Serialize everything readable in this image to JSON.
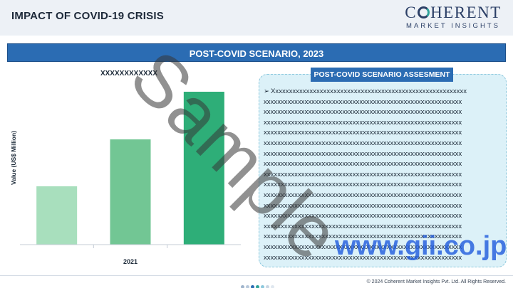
{
  "header": {
    "title": "IMPACT OF COVID-19 CRISIS",
    "logo_main_prefix": "C",
    "logo_main_suffix": "HERENT",
    "logo_sub": "MARKET INSIGHTS"
  },
  "banner": {
    "text": "POST-COVID SCENARIO, 2023"
  },
  "assessment": {
    "title": "POST-COVID SCENARIO ASSESMENT",
    "bullet": "➢",
    "lines": [
      "Xxxxxxxxxxxxxxxxxxxxxxxxxxxxxxxxxxxxxxxxxxxxxxxxxxxxxxxxx",
      "xxxxxxxxxxxxxxxxxxxxxxxxxxxxxxxxxxxxxxxxxxxxxxxxxxxxxxxxxx",
      "xxxxxxxxxxxxxxxxxxxxxxxxxxxxxxxxxxxxxxxxxxxxxxxxxxxxxxxxxx",
      "xxxxxxxxxxxxxxxxxxxxxxxxxxxxxxxxxxxxxxxxxxxxxxxxxxxxxxxxxx",
      "xxxxxxxxxxxxxxxxxxxxxxxxxxxxxxxxxxxxxxxxxxxxxxxxxxxxxxxxxx",
      "xxxxxxxxxxxxxxxxxxxxxxxxxxxxxxxxxxxxxxxxxxxxxxxxxxxxxxxxxx",
      "xxxxxxxxxxxxxxxxxxxxxxxxxxxxxxxxxxxxxxxxxxxxxxxxxxxxxxxxxx",
      "xxxxxxxxxxxxxxxxxxxxxxxxxxxxxxxxxxxxxxxxxxxxxxxxxxxxxxxxxx",
      "xxxxxxxxxxxxxxxxxxxxxxxxxxxxxxxxxxxxxxxxxxxxxxxxxxxxxxxxxx",
      "xxxxxxxxxxxxxxxxxxxxxxxxxxxxxxxxxxxxxxxxxxxxxxxxxxxxxxxxxx",
      "xxxxxxxxxxxxxxxxxxxxxxxxxxxxxxxxxxxxxxxxxxxxxxxxxxxxxxxxxx",
      "xxxxxxxxxxxxxxxxxxxxxxxxxxxxxxxxxxxxxxxxxxxxxxxxxxxxxxxxxx",
      "xxxxxxxxxxxxxxxxxxxxxxxxxxxxxxxxxxxxxxxxxxxxxxxxxxxxxxxxxx",
      "xxxxxxxxxxxxxxxxxxxxxxxxxxxxxxxxxxxxxxxxxxxxxxxxxxxxxxxxxx",
      "xxxxxxxxxxxxxxxxxxxxxxxxxxxxxxxxxxxxxxxxxxxxxxxxxxxxxxxxxx",
      "xxxxxxxxxxxxxxxxxxxxxxxxxxxxxxxxxxxxxxxxxxxxxxxxxxxxxxxxxx",
      "xxxxxxxxxxxxxxxxxxxxxxxxxxxxxxxxxxxxxxxxxxxxxxxxxxxxxxxxxx"
    ]
  },
  "watermarks": {
    "sample": "Sample",
    "site": "www.gii.co.jp"
  },
  "footer": {
    "copyright": "© 2024 Coherent Market Insights Pvt. Ltd. All Rights Reserved.",
    "dot_colors": [
      "#9fb4cc",
      "#b7c8db",
      "#2b6cb3",
      "#2fa39a",
      "#8cc8dd",
      "#c9d6e3",
      "#dfe7ef"
    ]
  },
  "chart_data": {
    "type": "bar",
    "title": "XXXXXXXXXXXX",
    "ylabel": "Value (US$ Million)",
    "xlabel": "",
    "categories": [
      "",
      "2021",
      ""
    ],
    "values": [
      82,
      148,
      215
    ],
    "ylim": [
      0,
      215
    ],
    "colors": [
      "#a8dfbd",
      "#72c694",
      "#2eae78"
    ],
    "grid": false
  }
}
